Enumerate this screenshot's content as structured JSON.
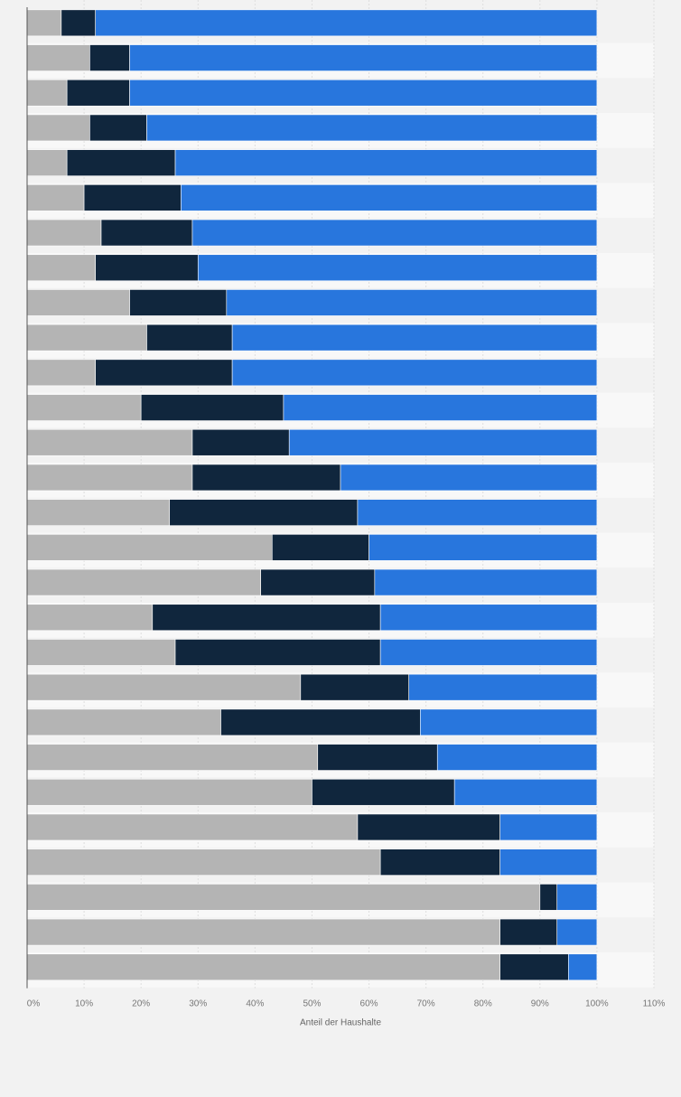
{
  "chart_data": {
    "type": "bar",
    "orientation": "horizontal",
    "stacked": true,
    "xlabel": "Anteil der Haushalte",
    "xlim": [
      0,
      110
    ],
    "x_ticks": [
      "0%",
      "10%",
      "20%",
      "30%",
      "40%",
      "50%",
      "60%",
      "70%",
      "80%",
      "90%",
      "100%",
      "110%"
    ],
    "grid": true,
    "legend": "none",
    "colors": {
      "segment_1": "#b4b4b4",
      "segment_2": "#10263d",
      "segment_3": "#2876dd"
    },
    "series": [
      {
        "values": [
          6,
          11,
          7,
          11,
          7,
          10,
          13,
          12,
          18,
          21,
          12,
          20,
          29,
          29,
          25,
          43,
          41,
          22,
          26,
          48,
          34,
          51,
          50,
          58,
          62,
          90,
          83,
          83
        ]
      },
      {
        "values": [
          6,
          7,
          11,
          10,
          19,
          17,
          16,
          18,
          17,
          15,
          24,
          25,
          17,
          26,
          33,
          17,
          20,
          40,
          36,
          19,
          35,
          21,
          25,
          25,
          21,
          3,
          10,
          12
        ]
      },
      {
        "values": [
          88,
          82,
          82,
          79,
          74,
          73,
          71,
          70,
          65,
          64,
          64,
          55,
          54,
          45,
          42,
          40,
          39,
          38,
          38,
          33,
          31,
          28,
          25,
          17,
          17,
          7,
          7,
          5
        ]
      }
    ]
  }
}
